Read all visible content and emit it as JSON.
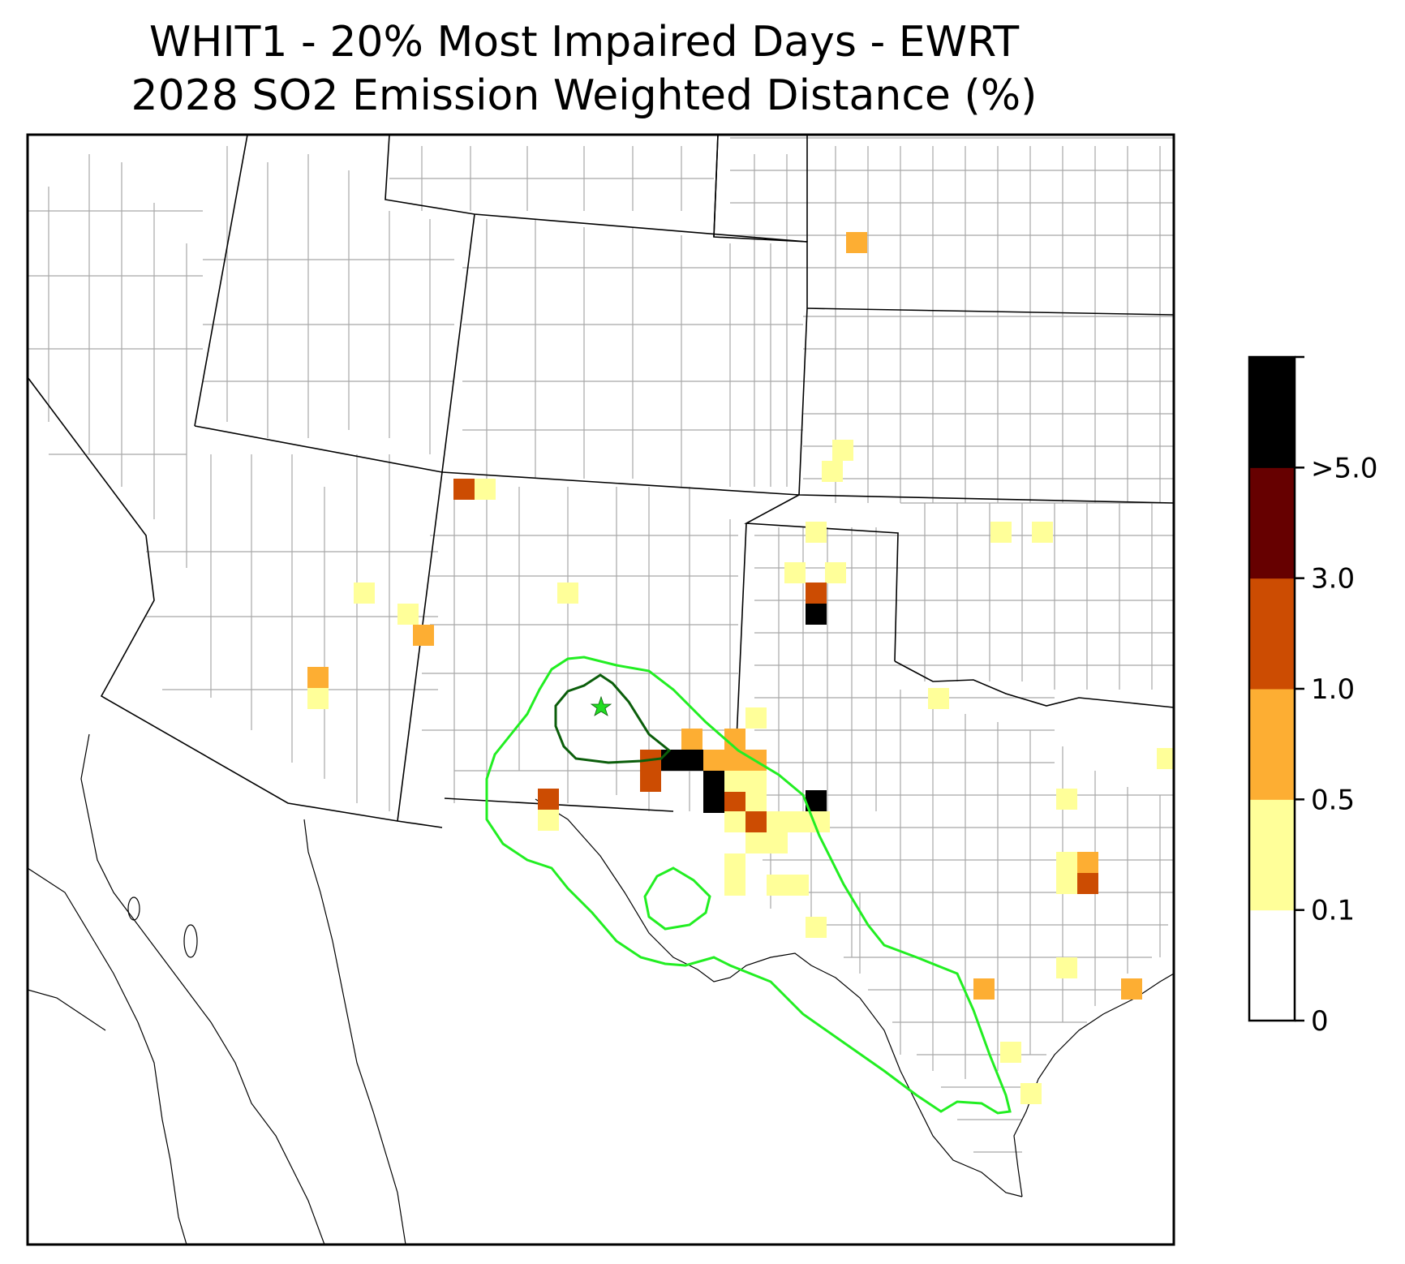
{
  "title": {
    "line1": "WHIT1 - 20% Most Impaired Days - EWRT",
    "line2": "2028 SO2 Emission Weighted Distance (%)"
  },
  "colorbar": {
    "bins": [
      {
        "label": "0",
        "color": "#ffffff"
      },
      {
        "label": "0.1",
        "color": "#ffff99"
      },
      {
        "label": "0.5",
        "color": "#fdae33"
      },
      {
        "label": "1.0",
        "color": "#cc4c02"
      },
      {
        "label": "3.0",
        "color": "#660000"
      },
      {
        "label": ">5.0",
        "color": "#000000"
      }
    ]
  },
  "colors": {
    "contour_light": "#22ee22",
    "contour_dark": "#0b5e0b",
    "state_border": "#000000",
    "county_border": "#a0a0a0",
    "site_marker": "#22dd22"
  }
}
